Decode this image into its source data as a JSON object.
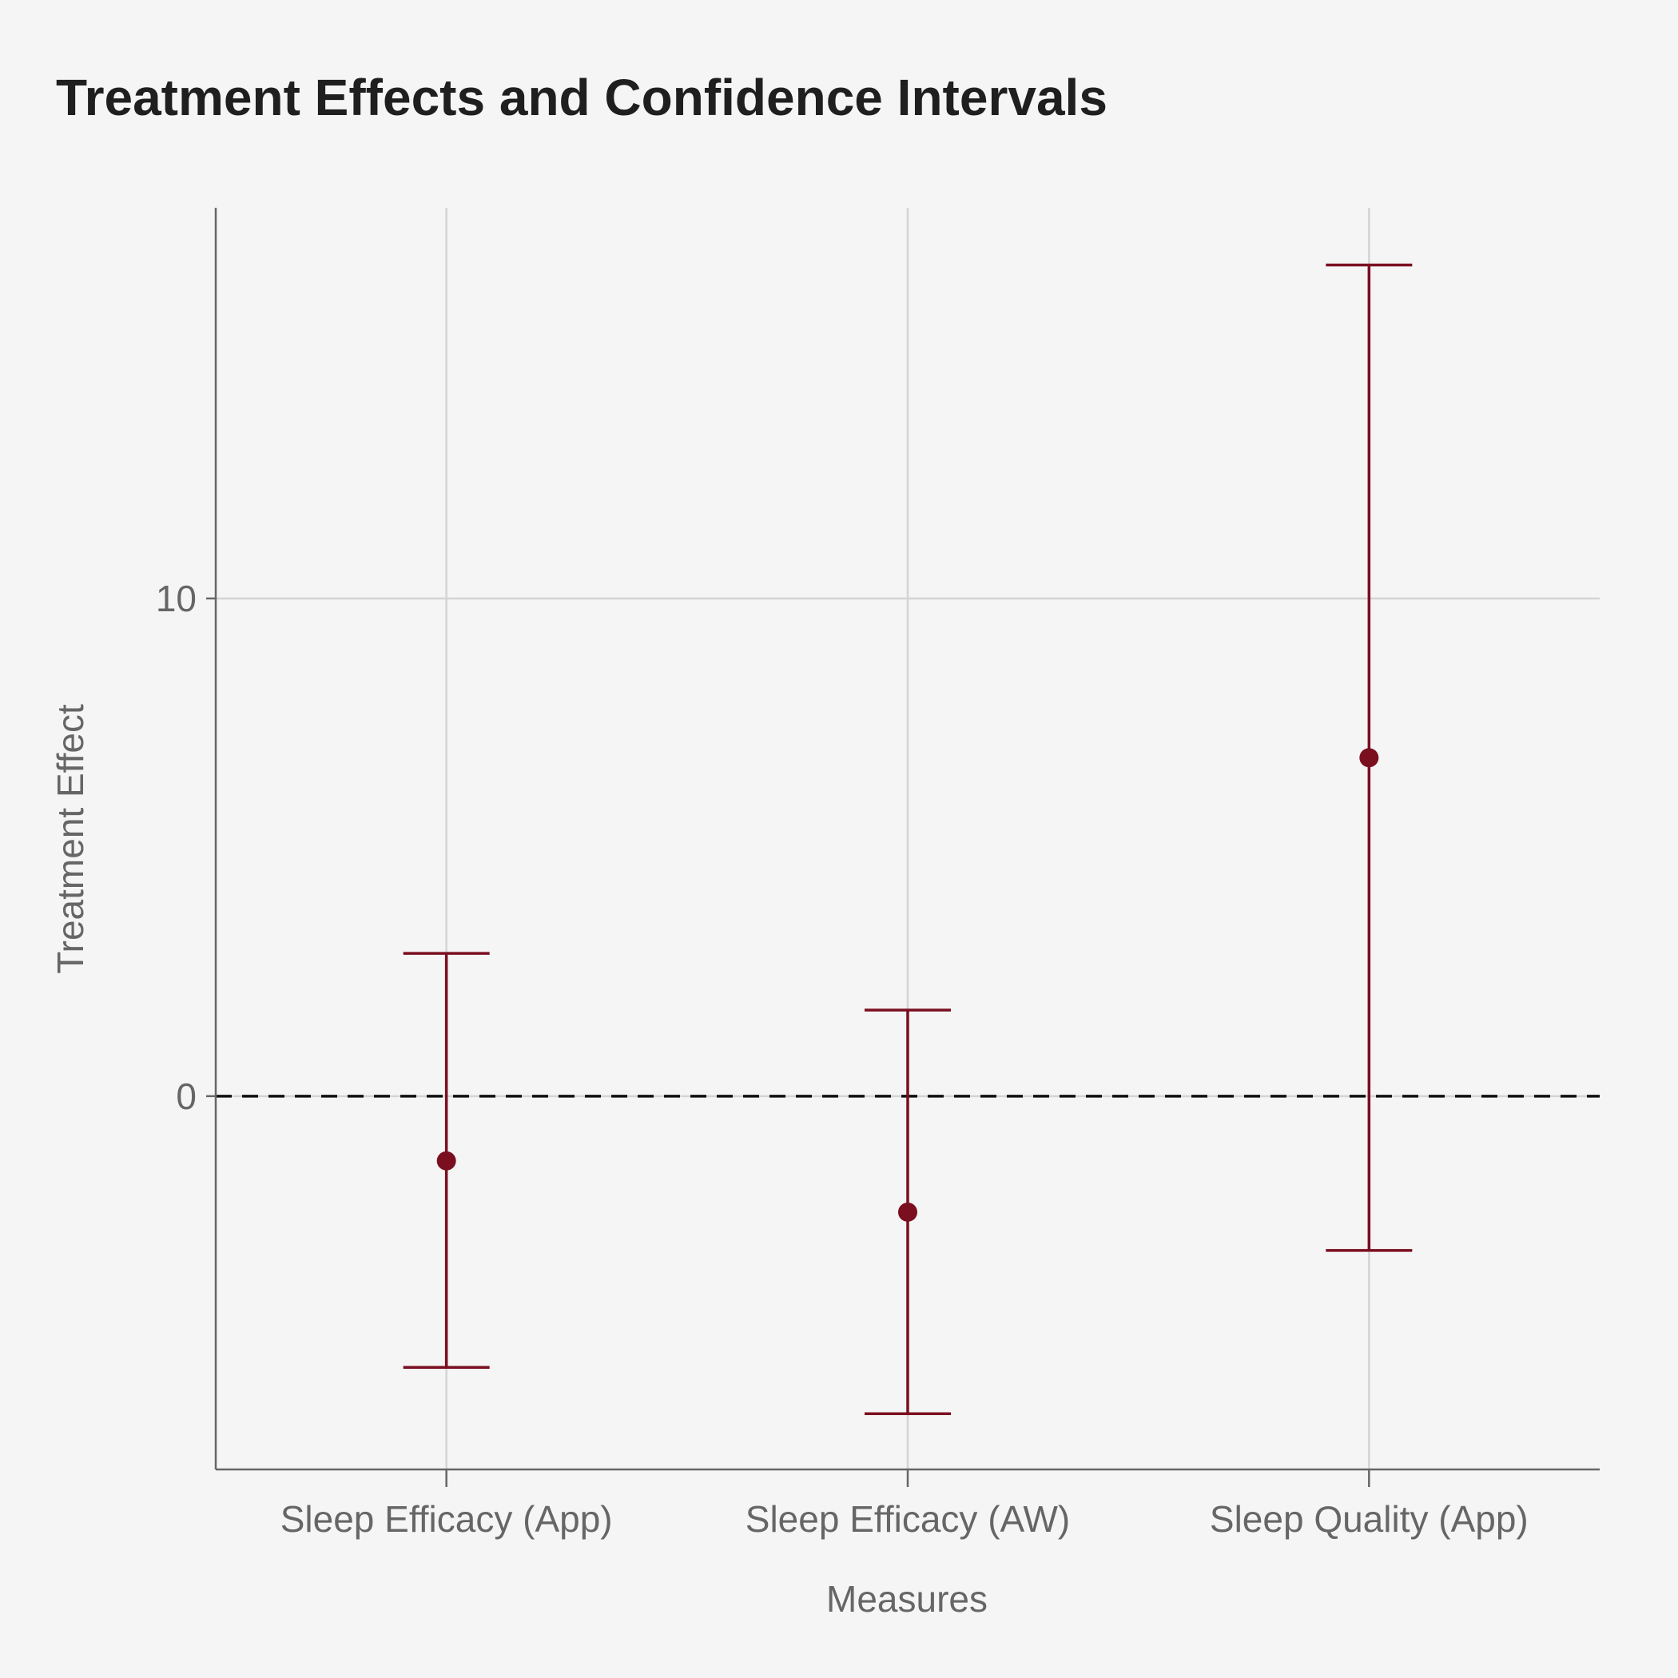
{
  "chart_data": {
    "type": "errorbar",
    "title": "Treatment Effects and Confidence Intervals",
    "xlabel": "Measures",
    "ylabel": "Treatment Effect",
    "categories": [
      "Sleep Efficacy (App)",
      "Sleep Efficacy (AW)",
      "Sleep Quality (App)"
    ],
    "estimates": [
      -1.3,
      -2.33,
      6.8
    ],
    "ci_lower": [
      -5.45,
      -6.38,
      -3.1
    ],
    "ci_upper": [
      2.87,
      1.73,
      16.7
    ],
    "ylim": [
      -7.5,
      17.85
    ],
    "yticks": [
      0,
      10
    ],
    "ytick_labels": [
      "0",
      "10"
    ],
    "reference_line": 0,
    "grid": true,
    "colors": {
      "series": "#7a0f20",
      "grid": "#d4d4d4",
      "axis": "#666666",
      "reference": "#111111",
      "background": "#f5f5f5"
    }
  }
}
